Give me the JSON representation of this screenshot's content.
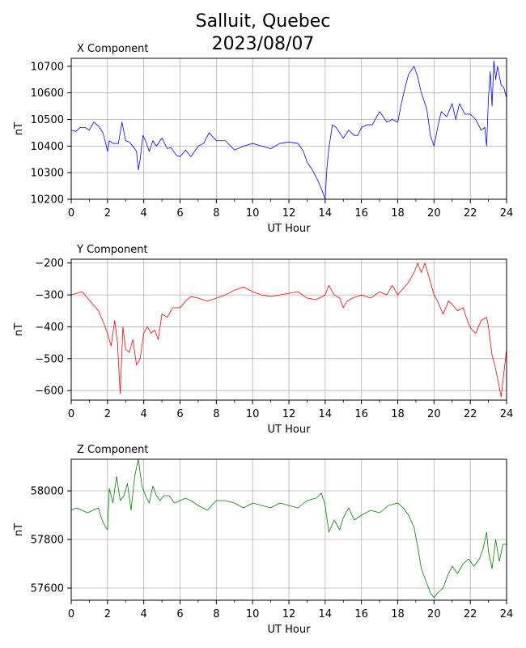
{
  "title_line1": "Salluit, Quebec",
  "title_line2": "2023/08/07",
  "chart_data": [
    {
      "type": "line",
      "title": "X Component",
      "xlabel": "UT Hour",
      "ylabel": "nT",
      "xlim": [
        0,
        24
      ],
      "ylim": [
        10200,
        10730
      ],
      "xticks": [
        0,
        2,
        4,
        6,
        8,
        10,
        12,
        14,
        16,
        18,
        20,
        22,
        24
      ],
      "yticks": [
        10200,
        10300,
        10400,
        10500,
        10600,
        10700
      ],
      "grid": true,
      "color": "#0000ff",
      "series": [
        {
          "x": [
            0,
            0.25,
            0.5,
            0.75,
            1,
            1.25,
            1.5,
            1.75,
            1.9,
            2.0,
            2.1,
            2.3,
            2.6,
            2.8,
            3.0,
            3.2,
            3.4,
            3.6,
            3.7,
            3.8,
            3.95,
            4.1,
            4.3,
            4.5,
            4.7,
            5.0,
            5.3,
            5.5,
            5.8,
            6.0,
            6.3,
            6.6,
            7.0,
            7.3,
            7.6,
            8.0,
            8.5,
            9.0,
            9.5,
            10,
            10.5,
            11,
            11.5,
            12,
            12.5,
            12.8,
            13.0,
            13.3,
            13.6,
            13.9,
            14.0,
            14.1,
            14.2,
            14.4,
            14.6,
            14.8,
            15.0,
            15.3,
            15.6,
            15.8,
            16.0,
            16.3,
            16.6,
            17.0,
            17.4,
            17.7,
            18.0,
            18.2,
            18.4,
            18.6,
            18.9,
            19.1,
            19.3,
            19.6,
            19.8,
            20.0,
            20.2,
            20.4,
            20.7,
            21.0,
            21.2,
            21.4,
            21.7,
            22.0,
            22.3,
            22.6,
            22.8,
            22.9,
            23.0,
            23.1,
            23.2,
            23.3,
            23.4,
            23.5,
            23.7,
            23.85,
            24.0
          ],
          "y": [
            10460,
            10455,
            10470,
            10470,
            10460,
            10490,
            10475,
            10450,
            10410,
            10380,
            10420,
            10410,
            10410,
            10490,
            10420,
            10415,
            10400,
            10380,
            10310,
            10350,
            10440,
            10420,
            10380,
            10420,
            10400,
            10430,
            10390,
            10395,
            10365,
            10360,
            10385,
            10360,
            10400,
            10410,
            10450,
            10420,
            10420,
            10385,
            10400,
            10410,
            10400,
            10390,
            10410,
            10415,
            10410,
            10380,
            10340,
            10310,
            10270,
            10220,
            10200,
            10320,
            10390,
            10480,
            10470,
            10450,
            10430,
            10460,
            10440,
            10440,
            10470,
            10480,
            10480,
            10530,
            10490,
            10500,
            10490,
            10560,
            10620,
            10670,
            10700,
            10660,
            10600,
            10540,
            10440,
            10400,
            10470,
            10530,
            10510,
            10560,
            10500,
            10560,
            10520,
            10520,
            10500,
            10460,
            10470,
            10400,
            10580,
            10680,
            10550,
            10720,
            10650,
            10700,
            10630,
            10620,
            10580
          ]
        }
      ]
    },
    {
      "type": "line",
      "title": "Y Component",
      "xlabel": "UT Hour",
      "ylabel": "nT",
      "xlim": [
        0,
        24
      ],
      "ylim": [
        -630,
        -188
      ],
      "xticks": [
        0,
        2,
        4,
        6,
        8,
        10,
        12,
        14,
        16,
        18,
        20,
        22,
        24
      ],
      "yticks": [
        -600,
        -500,
        -400,
        -300,
        -200
      ],
      "grid": true,
      "color": "#ff0000",
      "series": [
        {
          "x": [
            0,
            0.3,
            0.6,
            0.9,
            1.2,
            1.5,
            1.8,
            2.0,
            2.2,
            2.4,
            2.55,
            2.7,
            2.85,
            3.0,
            3.2,
            3.4,
            3.6,
            3.8,
            4.0,
            4.2,
            4.4,
            4.6,
            4.8,
            5.0,
            5.3,
            5.6,
            6.0,
            6.3,
            6.6,
            7.0,
            7.5,
            8.0,
            8.5,
            9.0,
            9.5,
            10,
            10.5,
            11,
            11.5,
            12,
            12.5,
            13,
            13.5,
            14.0,
            14.2,
            14.5,
            14.8,
            15.0,
            15.2,
            15.5,
            16.0,
            16.5,
            17.0,
            17.4,
            17.7,
            18.0,
            18.3,
            18.6,
            18.9,
            19.1,
            19.3,
            19.5,
            19.7,
            20.0,
            20.2,
            20.5,
            20.8,
            21.0,
            21.3,
            21.6,
            21.9,
            22.1,
            22.3,
            22.6,
            22.9,
            23.0,
            23.2,
            23.35,
            23.5,
            23.7,
            23.9,
            24.0
          ],
          "y": [
            -300,
            -295,
            -290,
            -310,
            -330,
            -350,
            -390,
            -420,
            -460,
            -380,
            -450,
            -610,
            -400,
            -470,
            -480,
            -440,
            -520,
            -500,
            -420,
            -400,
            -420,
            -410,
            -440,
            -360,
            -370,
            -340,
            -340,
            -320,
            -305,
            -310,
            -320,
            -310,
            -300,
            -285,
            -275,
            -290,
            -300,
            -305,
            -300,
            -295,
            -290,
            -310,
            -315,
            -300,
            -270,
            -300,
            -310,
            -340,
            -320,
            -310,
            -300,
            -310,
            -290,
            -300,
            -270,
            -300,
            -280,
            -260,
            -230,
            -200,
            -230,
            -200,
            -240,
            -300,
            -320,
            -360,
            -320,
            -330,
            -350,
            -340,
            -390,
            -410,
            -420,
            -380,
            -370,
            -400,
            -490,
            -520,
            -560,
            -620,
            -520,
            -470
          ]
        }
      ]
    },
    {
      "type": "line",
      "title": "Z Component",
      "xlabel": "UT Hour",
      "ylabel": "nT",
      "xlim": [
        0,
        24
      ],
      "ylim": [
        57550,
        58130
      ],
      "xticks": [
        0,
        2,
        4,
        6,
        8,
        10,
        12,
        14,
        16,
        18,
        20,
        22,
        24
      ],
      "yticks": [
        57600,
        57800,
        58000
      ],
      "grid": true,
      "color": "#008000",
      "series": [
        {
          "x": [
            0,
            0.3,
            0.6,
            0.9,
            1.2,
            1.5,
            1.7,
            1.9,
            2.0,
            2.1,
            2.3,
            2.5,
            2.7,
            2.9,
            3.1,
            3.3,
            3.5,
            3.7,
            3.9,
            4.1,
            4.3,
            4.5,
            4.7,
            4.9,
            5.1,
            5.4,
            5.7,
            6.0,
            6.3,
            6.6,
            7.0,
            7.5,
            8.0,
            8.5,
            9.0,
            9.5,
            10,
            10.5,
            11,
            11.5,
            12,
            12.5,
            13,
            13.5,
            13.8,
            14.0,
            14.2,
            14.5,
            14.8,
            15.0,
            15.3,
            15.6,
            16.0,
            16.5,
            17.0,
            17.5,
            18.0,
            18.3,
            18.6,
            18.9,
            19.1,
            19.3,
            19.6,
            19.8,
            20.0,
            20.2,
            20.5,
            20.8,
            21.0,
            21.3,
            21.6,
            21.9,
            22.2,
            22.5,
            22.7,
            22.9,
            23.0,
            23.2,
            23.4,
            23.6,
            23.8,
            24.0
          ],
          "y": [
            57920,
            57930,
            57920,
            57910,
            57920,
            57930,
            57880,
            57850,
            57840,
            58010,
            57950,
            58060,
            57960,
            57980,
            58030,
            57920,
            58060,
            58130,
            58020,
            57980,
            57950,
            58020,
            57980,
            57960,
            57980,
            57980,
            57950,
            57960,
            57970,
            57960,
            57940,
            57920,
            57960,
            57960,
            57950,
            57930,
            57950,
            57940,
            57930,
            57950,
            57940,
            57930,
            57960,
            57970,
            57990,
            57940,
            57830,
            57880,
            57840,
            57890,
            57930,
            57880,
            57900,
            57920,
            57910,
            57940,
            57950,
            57930,
            57900,
            57850,
            57770,
            57680,
            57620,
            57580,
            57560,
            57580,
            57600,
            57660,
            57690,
            57660,
            57700,
            57720,
            57690,
            57720,
            57760,
            57830,
            57750,
            57680,
            57800,
            57710,
            57780,
            57780
          ]
        }
      ]
    }
  ]
}
